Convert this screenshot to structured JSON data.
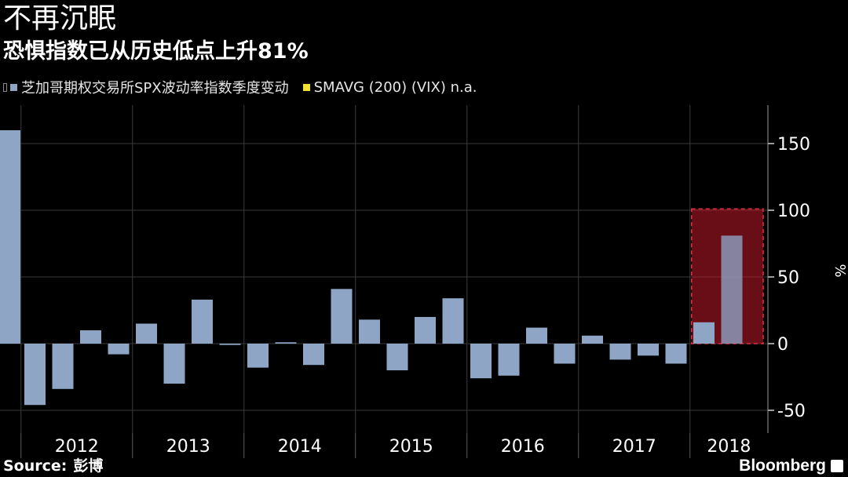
{
  "header": {
    "title": "不再沉眠",
    "subtitle": "恐惧指数已从历史低点上升81%"
  },
  "legend": {
    "items": [
      {
        "label": "芝加哥期权交易所SPX波动率指数季度变动",
        "color": "#8ea5c6"
      },
      {
        "label": "SMAVG (200) (VIX) n.a.",
        "color": "#f0e130"
      }
    ]
  },
  "chart_data": {
    "type": "bar",
    "ylabel": "%",
    "ylim": [
      -60,
      175
    ],
    "yticks": [
      150,
      100,
      50,
      0,
      -50
    ],
    "year_labels": [
      "2012",
      "2013",
      "2014",
      "2015",
      "2016",
      "2017",
      "2018"
    ],
    "bar_color": "#8ea5c6",
    "highlight_color": "#c0182a",
    "values": [
      160,
      -46,
      -34,
      10,
      -8,
      15,
      -30,
      33,
      -1,
      -18,
      1,
      -16,
      41,
      18,
      -20,
      20,
      34,
      -26,
      -24,
      12,
      -15,
      6,
      -12,
      -9,
      -15,
      16,
      81
    ],
    "highlight": {
      "from_index": 25,
      "to_index": 26,
      "top": 101
    }
  },
  "footer": {
    "source_label": "Source:",
    "source_value": "彭博",
    "brand": "Bloomberg"
  }
}
